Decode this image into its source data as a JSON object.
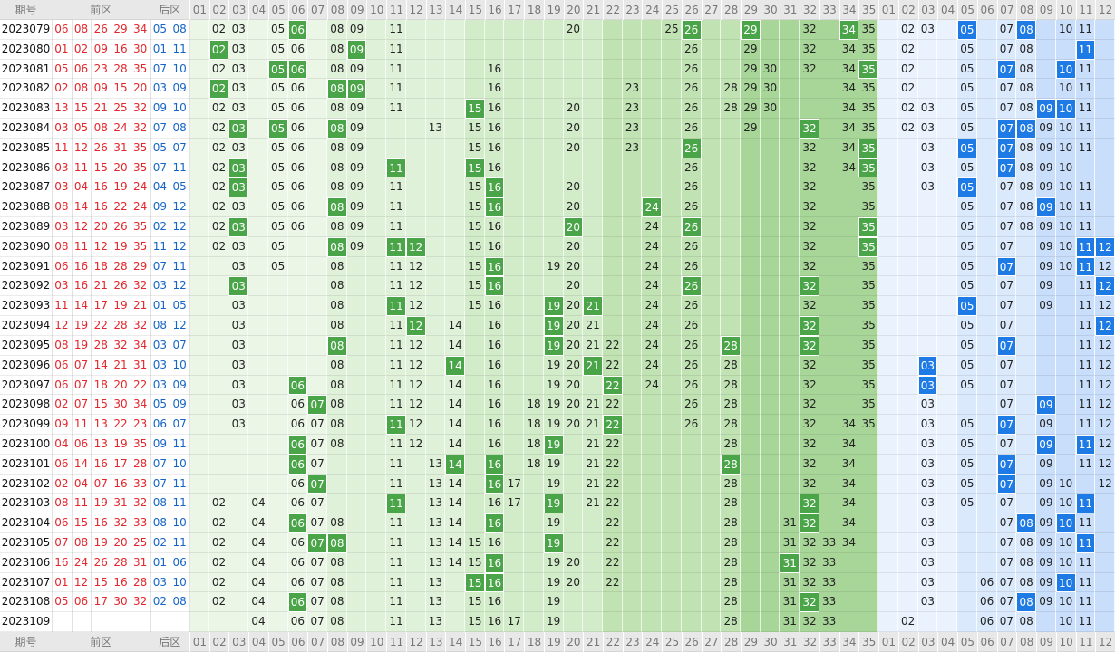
{
  "header": {
    "issue": "期号",
    "front": "前区",
    "back": "后区",
    "front_cols": [
      "01",
      "02",
      "03",
      "04",
      "05",
      "06",
      "07",
      "08",
      "09",
      "10",
      "11",
      "12",
      "13",
      "14",
      "15",
      "16",
      "17",
      "18",
      "19",
      "20",
      "21",
      "22",
      "23",
      "24",
      "25",
      "26",
      "27",
      "28",
      "29",
      "30",
      "31",
      "32",
      "33",
      "34",
      "35"
    ],
    "back_cols": [
      "01",
      "02",
      "03",
      "04",
      "05",
      "06",
      "07",
      "08",
      "09",
      "10",
      "11",
      "12"
    ]
  },
  "rows": [
    {
      "issue": "2023079",
      "front": [
        "06",
        "08",
        "26",
        "29",
        "34"
      ],
      "back": [
        "05",
        "08"
      ],
      "front_plain": [
        "02",
        "03",
        "05",
        "08",
        "09",
        "11",
        "20",
        "25",
        "32",
        "35"
      ],
      "front_hit": [
        "06",
        "26",
        "29",
        "34"
      ],
      "back_plain": [
        "02",
        "03",
        "07",
        "10",
        "11"
      ],
      "back_hit": [
        "05",
        "08"
      ]
    },
    {
      "issue": "2023080",
      "front": [
        "01",
        "02",
        "09",
        "16",
        "30"
      ],
      "back": [
        "01",
        "11"
      ],
      "front_plain": [
        "03",
        "05",
        "06",
        "08",
        "11",
        "26",
        "29",
        "32",
        "34",
        "35"
      ],
      "front_hit": [
        "02",
        "09"
      ],
      "back_plain": [
        "02",
        "05",
        "07",
        "08"
      ],
      "back_hit": [
        "11"
      ]
    },
    {
      "issue": "2023081",
      "front": [
        "05",
        "06",
        "23",
        "28",
        "35"
      ],
      "back": [
        "07",
        "10"
      ],
      "front_plain": [
        "02",
        "03",
        "08",
        "09",
        "11",
        "16",
        "26",
        "29",
        "30",
        "32",
        "34"
      ],
      "front_hit": [
        "05",
        "06",
        "35"
      ],
      "back_plain": [
        "02",
        "05",
        "08",
        "11"
      ],
      "back_hit": [
        "07",
        "10"
      ]
    },
    {
      "issue": "2023082",
      "front": [
        "02",
        "08",
        "09",
        "15",
        "20"
      ],
      "back": [
        "03",
        "09"
      ],
      "front_plain": [
        "03",
        "05",
        "06",
        "11",
        "16",
        "23",
        "26",
        "28",
        "29",
        "30",
        "34",
        "35"
      ],
      "front_hit": [
        "02",
        "08",
        "09"
      ],
      "back_plain": [
        "02",
        "05",
        "07",
        "08",
        "10",
        "11"
      ],
      "back_hit": []
    },
    {
      "issue": "2023083",
      "front": [
        "13",
        "15",
        "21",
        "25",
        "32"
      ],
      "back": [
        "09",
        "10"
      ],
      "front_plain": [
        "02",
        "03",
        "05",
        "06",
        "08",
        "09",
        "11",
        "16",
        "20",
        "23",
        "26",
        "28",
        "29",
        "30",
        "34",
        "35"
      ],
      "front_hit": [
        "15"
      ],
      "back_plain": [
        "02",
        "03",
        "05",
        "07",
        "08",
        "11"
      ],
      "back_hit": [
        "09",
        "10"
      ]
    },
    {
      "issue": "2023084",
      "front": [
        "03",
        "05",
        "08",
        "24",
        "32"
      ],
      "back": [
        "07",
        "08"
      ],
      "front_plain": [
        "02",
        "06",
        "09",
        "13",
        "15",
        "16",
        "20",
        "23",
        "26",
        "29",
        "34",
        "35"
      ],
      "front_hit": [
        "03",
        "05",
        "08",
        "32"
      ],
      "back_plain": [
        "02",
        "03",
        "05",
        "09",
        "10",
        "11"
      ],
      "back_hit": [
        "07",
        "08"
      ]
    },
    {
      "issue": "2023085",
      "front": [
        "11",
        "12",
        "26",
        "31",
        "35"
      ],
      "back": [
        "05",
        "07"
      ],
      "front_plain": [
        "02",
        "03",
        "05",
        "06",
        "08",
        "09",
        "15",
        "16",
        "20",
        "23",
        "32",
        "34"
      ],
      "front_hit": [
        "26",
        "35"
      ],
      "back_plain": [
        "03",
        "08",
        "09",
        "10",
        "11"
      ],
      "back_hit": [
        "05",
        "07"
      ]
    },
    {
      "issue": "2023086",
      "front": [
        "03",
        "11",
        "15",
        "20",
        "35"
      ],
      "back": [
        "07",
        "11"
      ],
      "front_plain": [
        "02",
        "05",
        "06",
        "08",
        "09",
        "16",
        "26",
        "32",
        "34"
      ],
      "front_hit": [
        "03",
        "11",
        "15",
        "35"
      ],
      "back_plain": [
        "03",
        "05",
        "08",
        "09",
        "10"
      ],
      "back_hit": [
        "07"
      ]
    },
    {
      "issue": "2023087",
      "front": [
        "03",
        "04",
        "16",
        "19",
        "24"
      ],
      "back": [
        "04",
        "05"
      ],
      "front_plain": [
        "02",
        "05",
        "06",
        "08",
        "09",
        "11",
        "15",
        "20",
        "26",
        "32",
        "35"
      ],
      "front_hit": [
        "03",
        "16"
      ],
      "back_plain": [
        "03",
        "07",
        "08",
        "09",
        "10",
        "11"
      ],
      "back_hit": [
        "05"
      ]
    },
    {
      "issue": "2023088",
      "front": [
        "08",
        "14",
        "16",
        "22",
        "24"
      ],
      "back": [
        "09",
        "12"
      ],
      "front_plain": [
        "02",
        "03",
        "05",
        "06",
        "09",
        "11",
        "15",
        "20",
        "26",
        "32",
        "35"
      ],
      "front_hit": [
        "08",
        "16",
        "24"
      ],
      "back_plain": [
        "05",
        "07",
        "08",
        "10",
        "11"
      ],
      "back_hit": [
        "09"
      ]
    },
    {
      "issue": "2023089",
      "front": [
        "03",
        "12",
        "20",
        "26",
        "35"
      ],
      "back": [
        "02",
        "12"
      ],
      "front_plain": [
        "02",
        "05",
        "06",
        "08",
        "09",
        "11",
        "15",
        "16",
        "24",
        "32"
      ],
      "front_hit": [
        "03",
        "20",
        "26",
        "35"
      ],
      "back_plain": [
        "05",
        "07",
        "08",
        "09",
        "10",
        "11"
      ],
      "back_hit": []
    },
    {
      "issue": "2023090",
      "front": [
        "08",
        "11",
        "12",
        "19",
        "35"
      ],
      "back": [
        "11",
        "12"
      ],
      "front_plain": [
        "02",
        "03",
        "05",
        "09",
        "15",
        "16",
        "20",
        "24",
        "26",
        "32"
      ],
      "front_hit": [
        "08",
        "11",
        "12",
        "35"
      ],
      "back_plain": [
        "05",
        "07",
        "09",
        "10"
      ],
      "back_hit": [
        "11",
        "12"
      ]
    },
    {
      "issue": "2023091",
      "front": [
        "06",
        "16",
        "18",
        "28",
        "29"
      ],
      "back": [
        "07",
        "11"
      ],
      "front_plain": [
        "03",
        "05",
        "08",
        "11",
        "12",
        "15",
        "19",
        "20",
        "24",
        "26",
        "32",
        "35"
      ],
      "front_hit": [
        "16"
      ],
      "back_plain": [
        "05",
        "09",
        "10",
        "12"
      ],
      "back_hit": [
        "07",
        "11"
      ]
    },
    {
      "issue": "2023092",
      "front": [
        "03",
        "16",
        "21",
        "26",
        "32"
      ],
      "back": [
        "03",
        "12"
      ],
      "front_plain": [
        "08",
        "11",
        "12",
        "15",
        "20",
        "24",
        "35"
      ],
      "front_hit": [
        "03",
        "16",
        "26",
        "32"
      ],
      "back_plain": [
        "05",
        "07",
        "09",
        "11"
      ],
      "back_hit": [
        "12"
      ]
    },
    {
      "issue": "2023093",
      "front": [
        "11",
        "14",
        "17",
        "19",
        "21"
      ],
      "back": [
        "01",
        "05"
      ],
      "front_plain": [
        "03",
        "08",
        "12",
        "15",
        "16",
        "20",
        "24",
        "26",
        "32",
        "35"
      ],
      "front_hit": [
        "11",
        "19",
        "21"
      ],
      "back_plain": [
        "07",
        "09",
        "11",
        "12"
      ],
      "back_hit": [
        "05"
      ]
    },
    {
      "issue": "2023094",
      "front": [
        "12",
        "19",
        "22",
        "28",
        "32"
      ],
      "back": [
        "08",
        "12"
      ],
      "front_plain": [
        "03",
        "08",
        "11",
        "14",
        "16",
        "20",
        "21",
        "24",
        "26",
        "35"
      ],
      "front_hit": [
        "12",
        "19",
        "32"
      ],
      "back_plain": [
        "05",
        "07",
        "11"
      ],
      "back_hit": [
        "12"
      ]
    },
    {
      "issue": "2023095",
      "front": [
        "08",
        "19",
        "28",
        "32",
        "34"
      ],
      "back": [
        "03",
        "07"
      ],
      "front_plain": [
        "03",
        "11",
        "12",
        "14",
        "16",
        "20",
        "21",
        "22",
        "24",
        "26",
        "35"
      ],
      "front_hit": [
        "08",
        "19",
        "28",
        "32"
      ],
      "back_plain": [
        "05",
        "11",
        "12"
      ],
      "back_hit": [
        "07"
      ]
    },
    {
      "issue": "2023096",
      "front": [
        "06",
        "07",
        "14",
        "21",
        "31"
      ],
      "back": [
        "03",
        "10"
      ],
      "front_plain": [
        "03",
        "08",
        "11",
        "12",
        "16",
        "19",
        "20",
        "22",
        "24",
        "26",
        "28",
        "32",
        "35"
      ],
      "front_hit": [
        "14",
        "21"
      ],
      "back_plain": [
        "05",
        "07",
        "11",
        "12"
      ],
      "back_hit": [
        "03"
      ]
    },
    {
      "issue": "2023097",
      "front": [
        "06",
        "07",
        "18",
        "20",
        "22"
      ],
      "back": [
        "03",
        "09"
      ],
      "front_plain": [
        "03",
        "08",
        "11",
        "12",
        "14",
        "16",
        "19",
        "20",
        "24",
        "26",
        "28",
        "32",
        "35"
      ],
      "front_hit": [
        "06",
        "22"
      ],
      "back_plain": [
        "05",
        "07",
        "11",
        "12"
      ],
      "back_hit": [
        "03"
      ]
    },
    {
      "issue": "2023098",
      "front": [
        "02",
        "07",
        "15",
        "30",
        "34"
      ],
      "back": [
        "05",
        "09"
      ],
      "front_plain": [
        "03",
        "06",
        "08",
        "11",
        "12",
        "14",
        "16",
        "18",
        "19",
        "20",
        "21",
        "22",
        "26",
        "28",
        "32",
        "35"
      ],
      "front_hit": [
        "07"
      ],
      "back_plain": [
        "03",
        "07",
        "11",
        "12"
      ],
      "back_hit": [
        "09"
      ]
    },
    {
      "issue": "2023099",
      "front": [
        "09",
        "11",
        "13",
        "22",
        "23"
      ],
      "back": [
        "06",
        "07"
      ],
      "front_plain": [
        "03",
        "06",
        "07",
        "08",
        "12",
        "14",
        "16",
        "18",
        "19",
        "20",
        "21",
        "26",
        "28",
        "32",
        "34",
        "35"
      ],
      "front_hit": [
        "11",
        "22"
      ],
      "back_plain": [
        "03",
        "05",
        "09",
        "11",
        "12"
      ],
      "back_hit": [
        "07"
      ]
    },
    {
      "issue": "2023100",
      "front": [
        "04",
        "06",
        "13",
        "19",
        "35"
      ],
      "back": [
        "09",
        "11"
      ],
      "front_plain": [
        "07",
        "08",
        "11",
        "12",
        "14",
        "16",
        "18",
        "21",
        "22",
        "28",
        "32",
        "34"
      ],
      "front_hit": [
        "06",
        "19"
      ],
      "back_plain": [
        "03",
        "05",
        "07",
        "12"
      ],
      "back_hit": [
        "09",
        "11"
      ]
    },
    {
      "issue": "2023101",
      "front": [
        "06",
        "14",
        "16",
        "17",
        "28"
      ],
      "back": [
        "07",
        "10"
      ],
      "front_plain": [
        "07",
        "11",
        "13",
        "18",
        "19",
        "21",
        "22",
        "32",
        "34"
      ],
      "front_hit": [
        "06",
        "14",
        "16",
        "28"
      ],
      "back_plain": [
        "03",
        "05",
        "09",
        "11",
        "12"
      ],
      "back_hit": [
        "07"
      ]
    },
    {
      "issue": "2023102",
      "front": [
        "02",
        "04",
        "07",
        "16",
        "33"
      ],
      "back": [
        "07",
        "11"
      ],
      "front_plain": [
        "06",
        "11",
        "13",
        "14",
        "17",
        "19",
        "21",
        "22",
        "28",
        "32",
        "34"
      ],
      "front_hit": [
        "07",
        "16"
      ],
      "back_plain": [
        "03",
        "05",
        "09",
        "10",
        "12"
      ],
      "back_hit": [
        "07"
      ]
    },
    {
      "issue": "2023103",
      "front": [
        "08",
        "11",
        "19",
        "31",
        "32"
      ],
      "back": [
        "08",
        "11"
      ],
      "front_plain": [
        "02",
        "04",
        "06",
        "07",
        "13",
        "14",
        "16",
        "17",
        "21",
        "22",
        "28",
        "34"
      ],
      "front_hit": [
        "11",
        "19",
        "32"
      ],
      "back_plain": [
        "03",
        "05",
        "07",
        "09",
        "10"
      ],
      "back_hit": [
        "11"
      ]
    },
    {
      "issue": "2023104",
      "front": [
        "06",
        "15",
        "16",
        "32",
        "33"
      ],
      "back": [
        "08",
        "10"
      ],
      "front_plain": [
        "02",
        "04",
        "07",
        "08",
        "11",
        "13",
        "14",
        "19",
        "22",
        "28",
        "31",
        "34"
      ],
      "front_hit": [
        "06",
        "16",
        "32"
      ],
      "back_plain": [
        "03",
        "07",
        "09",
        "11"
      ],
      "back_hit": [
        "08",
        "10"
      ]
    },
    {
      "issue": "2023105",
      "front": [
        "07",
        "08",
        "19",
        "20",
        "25"
      ],
      "back": [
        "02",
        "11"
      ],
      "front_plain": [
        "02",
        "04",
        "06",
        "11",
        "13",
        "14",
        "15",
        "16",
        "22",
        "28",
        "31",
        "32",
        "33",
        "34"
      ],
      "front_hit": [
        "07",
        "08",
        "19"
      ],
      "back_plain": [
        "03",
        "07",
        "08",
        "09",
        "10"
      ],
      "back_hit": [
        "11"
      ]
    },
    {
      "issue": "2023106",
      "front": [
        "16",
        "24",
        "26",
        "28",
        "31"
      ],
      "back": [
        "01",
        "06"
      ],
      "front_plain": [
        "02",
        "04",
        "06",
        "07",
        "08",
        "11",
        "13",
        "14",
        "15",
        "19",
        "20",
        "22",
        "28",
        "32",
        "33"
      ],
      "front_hit": [
        "16",
        "31"
      ],
      "back_plain": [
        "03",
        "07",
        "08",
        "09",
        "10",
        "11"
      ],
      "back_hit": []
    },
    {
      "issue": "2023107",
      "front": [
        "01",
        "12",
        "15",
        "16",
        "28"
      ],
      "back": [
        "03",
        "10"
      ],
      "front_plain": [
        "02",
        "04",
        "06",
        "07",
        "08",
        "11",
        "13",
        "19",
        "20",
        "22",
        "28",
        "31",
        "32",
        "33"
      ],
      "front_hit": [
        "15",
        "16"
      ],
      "back_plain": [
        "03",
        "06",
        "07",
        "08",
        "09",
        "11"
      ],
      "back_hit": [
        "10"
      ]
    },
    {
      "issue": "2023108",
      "front": [
        "05",
        "06",
        "17",
        "30",
        "32"
      ],
      "back": [
        "02",
        "08"
      ],
      "front_plain": [
        "02",
        "04",
        "07",
        "08",
        "11",
        "13",
        "15",
        "16",
        "19",
        "28",
        "31",
        "33"
      ],
      "front_hit": [
        "06",
        "32"
      ],
      "back_plain": [
        "03",
        "06",
        "07",
        "09",
        "10",
        "11"
      ],
      "back_hit": [
        "08"
      ]
    },
    {
      "issue": "2023109",
      "front": [],
      "back": [],
      "front_plain": [
        "04",
        "06",
        "07",
        "08",
        "11",
        "13",
        "15",
        "16",
        "17",
        "19",
        "28",
        "31",
        "32",
        "33"
      ],
      "front_hit": [],
      "back_plain": [
        "02",
        "06",
        "07",
        "08",
        "10",
        "11"
      ],
      "back_hit": []
    }
  ]
}
